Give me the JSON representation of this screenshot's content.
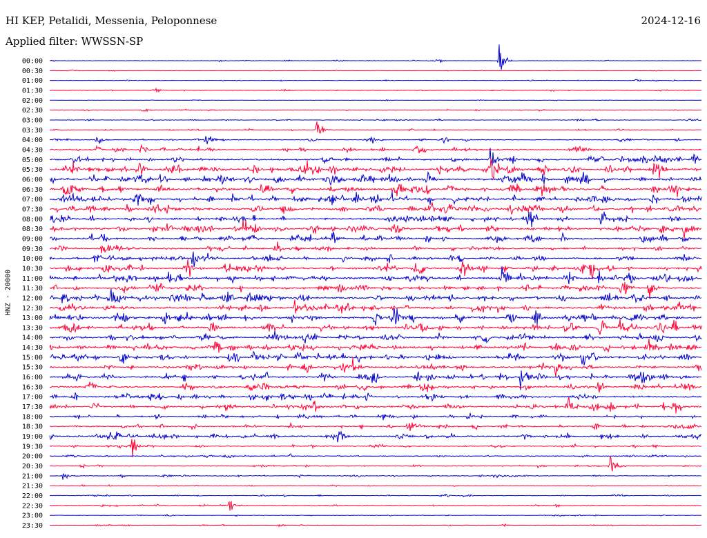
{
  "header": {
    "station": "HI KEP, Petalidi, Messenia, Peloponnese",
    "date": "2024-12-16",
    "filter": "Applied filter: WWSSN-SP"
  },
  "chart_data": {
    "type": "line",
    "subtype": "helicorder",
    "ylabel": "HNZ - 20000",
    "row_labels": [
      "00:00",
      "00:30",
      "01:00",
      "01:30",
      "02:00",
      "02:30",
      "03:00",
      "03:30",
      "04:00",
      "04:30",
      "05:00",
      "05:30",
      "06:00",
      "06:30",
      "07:00",
      "07:30",
      "08:00",
      "08:30",
      "09:00",
      "09:30",
      "10:00",
      "10:30",
      "11:00",
      "11:30",
      "12:00",
      "12:30",
      "13:00",
      "13:30",
      "14:00",
      "14:30",
      "15:00",
      "15:30",
      "16:00",
      "16:30",
      "17:00",
      "17:30",
      "18:00",
      "18:30",
      "19:00",
      "19:30",
      "20:00",
      "20:30",
      "21:00",
      "21:30",
      "22:00",
      "22:30",
      "23:00",
      "23:30"
    ],
    "trace_colors": [
      "#0000cc",
      "#ff0033"
    ],
    "trace_duration_minutes": 30,
    "noise_level": [
      0.3,
      0.2,
      0.3,
      0.3,
      0.2,
      0.3,
      0.4,
      0.4,
      0.5,
      0.8,
      1.0,
      1.3,
      1.3,
      1.2,
      1.3,
      1.2,
      1.1,
      1.2,
      1.1,
      0.9,
      1.0,
      1.1,
      1.2,
      1.1,
      1.2,
      1.2,
      1.2,
      1.2,
      1.1,
      1.2,
      1.2,
      1.0,
      1.1,
      1.0,
      1.0,
      1.0,
      0.8,
      0.8,
      0.9,
      0.6,
      0.5,
      0.5,
      0.5,
      0.3,
      0.4,
      0.4,
      0.3,
      0.3
    ],
    "events": [
      {
        "row": "00:00",
        "minute": 20.7,
        "amplitude": 22
      },
      {
        "row": "01:30",
        "minute": 4.8,
        "amplitude": 4
      },
      {
        "row": "03:30",
        "minute": 12.3,
        "amplitude": 9
      },
      {
        "row": "04:00",
        "minute": 7.2,
        "amplitude": 9
      },
      {
        "row": "04:00",
        "minute": 14.8,
        "amplitude": 9
      },
      {
        "row": "04:00",
        "minute": 2.2,
        "amplitude": 4
      },
      {
        "row": "05:00",
        "minute": 20.3,
        "amplitude": 12
      },
      {
        "row": "05:30",
        "minute": 0.7,
        "amplitude": 7
      },
      {
        "row": "05:30",
        "minute": 21.1,
        "amplitude": 10
      },
      {
        "row": "05:30",
        "minute": 27.8,
        "amplitude": 7
      },
      {
        "row": "06:00",
        "minute": 3.3,
        "amplitude": 7
      },
      {
        "row": "07:30",
        "minute": 18.4,
        "amplitude": 8
      },
      {
        "row": "08:00",
        "minute": 25.4,
        "amplitude": 12
      },
      {
        "row": "08:30",
        "minute": 8.9,
        "amplitude": 14
      },
      {
        "row": "08:30",
        "minute": 29.2,
        "amplitude": 10
      },
      {
        "row": "09:00",
        "minute": 13.0,
        "amplitude": 10
      },
      {
        "row": "09:30",
        "minute": 2.4,
        "amplitude": 9
      },
      {
        "row": "10:00",
        "minute": 2.1,
        "amplitude": 8
      },
      {
        "row": "10:00",
        "minute": 6.6,
        "amplitude": 10
      },
      {
        "row": "10:30",
        "minute": 16.9,
        "amplitude": 11
      },
      {
        "row": "10:30",
        "minute": 24.9,
        "amplitude": 12
      },
      {
        "row": "11:00",
        "minute": 25.3,
        "amplitude": 10
      },
      {
        "row": "11:30",
        "minute": 26.3,
        "amplitude": 10
      },
      {
        "row": "11:30",
        "minute": 27.6,
        "amplitude": 9
      },
      {
        "row": "12:00",
        "minute": 2.9,
        "amplitude": 9
      },
      {
        "row": "12:00",
        "minute": 7.0,
        "amplitude": 8
      },
      {
        "row": "12:30",
        "minute": 11.3,
        "amplitude": 10
      },
      {
        "row": "13:00",
        "minute": 15.9,
        "amplitude": 11
      },
      {
        "row": "13:00",
        "minute": 22.3,
        "amplitude": 10
      },
      {
        "row": "13:00",
        "minute": 3.4,
        "amplitude": 7
      },
      {
        "row": "13:30",
        "minute": 7.4,
        "amplitude": 9
      },
      {
        "row": "13:30",
        "minute": 25.3,
        "amplitude": 9
      },
      {
        "row": "15:00",
        "minute": 24.5,
        "amplitude": 9
      },
      {
        "row": "15:00",
        "minute": 3.3,
        "amplitude": 7
      },
      {
        "row": "15:30",
        "minute": 23.3,
        "amplitude": 9
      },
      {
        "row": "16:00",
        "minute": 21.7,
        "amplitude": 16
      },
      {
        "row": "16:30",
        "minute": 25.2,
        "amplitude": 11
      },
      {
        "row": "17:30",
        "minute": 12.2,
        "amplitude": 8
      },
      {
        "row": "17:30",
        "minute": 23.9,
        "amplitude": 8
      },
      {
        "row": "18:30",
        "minute": 16.5,
        "amplitude": 11
      },
      {
        "row": "19:00",
        "minute": 13.3,
        "amplitude": 9
      },
      {
        "row": "19:30",
        "minute": 3.8,
        "amplitude": 9
      },
      {
        "row": "20:30",
        "minute": 25.8,
        "amplitude": 18
      },
      {
        "row": "21:00",
        "minute": 0.6,
        "amplitude": 5
      },
      {
        "row": "22:30",
        "minute": 8.3,
        "amplitude": 10
      }
    ]
  }
}
